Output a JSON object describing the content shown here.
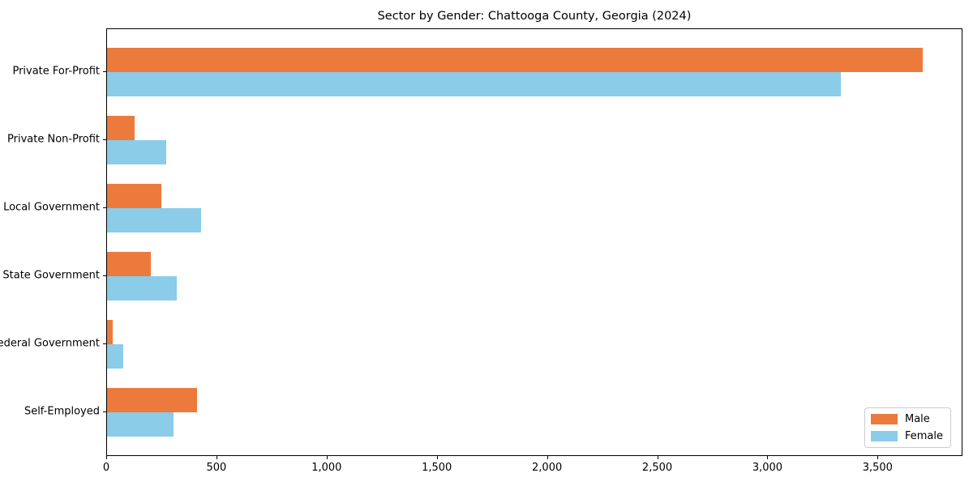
{
  "title": "Sector by Gender: Chattooga County, Georgia (2024)",
  "chart_data": {
    "type": "bar",
    "orientation": "horizontal",
    "title": "Sector by Gender: Chattooga County, Georgia (2024)",
    "categories": [
      "Private For-Profit",
      "Private Non-Profit",
      "Local Government",
      "State Government",
      "Federal Government",
      "Self-Employed"
    ],
    "series": [
      {
        "name": "Male",
        "color": "#EC7A3C",
        "values": [
          3700,
          125,
          245,
          200,
          25,
          410
        ]
      },
      {
        "name": "Female",
        "color": "#8BCCE9",
        "values": [
          3330,
          270,
          425,
          315,
          75,
          300
        ]
      }
    ],
    "xlim": [
      0,
      3885
    ],
    "xticks": [
      0,
      500,
      1000,
      1500,
      2000,
      2500,
      3000,
      3500
    ],
    "xtick_labels": [
      "0",
      "500",
      "1,000",
      "1,500",
      "2,000",
      "2,500",
      "3,000",
      "3,500"
    ],
    "xlabel": "",
    "ylabel": "",
    "grid": false,
    "legend_position": "lower right",
    "legend_entries": [
      "Male",
      "Female"
    ]
  }
}
